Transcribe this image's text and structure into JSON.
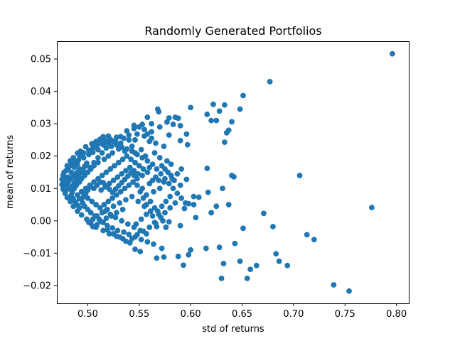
{
  "chart_data": {
    "type": "scatter",
    "title": "Randomly Generated Portfolios",
    "xlabel": "std of returns",
    "ylabel": "mean of returns",
    "xlim": [
      0.47,
      0.812
    ],
    "ylim": [
      -0.0255,
      0.0555
    ],
    "x_ticks": [
      0.5,
      0.55,
      0.6,
      0.65,
      0.7,
      0.75,
      0.8
    ],
    "x_tick_labels": [
      "0.50",
      "0.55",
      "0.60",
      "0.65",
      "0.70",
      "0.75",
      "0.80"
    ],
    "y_ticks": [
      -0.02,
      -0.01,
      0.0,
      0.01,
      0.02,
      0.03,
      0.04,
      0.05
    ],
    "y_tick_labels": [
      "−0.02",
      "−0.01",
      "0.00",
      "0.01",
      "0.02",
      "0.03",
      "0.04",
      "0.05"
    ],
    "marker_color": "#1f77b4",
    "grid": false,
    "points": [
      [
        0.796,
        0.0516
      ],
      [
        0.677,
        0.043
      ],
      [
        0.651,
        0.0387
      ],
      [
        0.622,
        0.036
      ],
      [
        0.633,
        0.0358
      ],
      [
        0.628,
        0.0339
      ],
      [
        0.648,
        0.0345
      ],
      [
        0.6,
        0.035
      ],
      [
        0.585,
        0.032
      ],
      [
        0.62,
        0.031
      ],
      [
        0.625,
        0.031
      ],
      [
        0.64,
        0.0306
      ],
      [
        0.637,
        0.028
      ],
      [
        0.635,
        0.0272
      ],
      [
        0.633,
        0.0243
      ],
      [
        0.616,
        0.0329
      ],
      [
        0.568,
        0.0345
      ],
      [
        0.569,
        0.0337
      ],
      [
        0.558,
        0.032
      ],
      [
        0.579,
        0.0318
      ],
      [
        0.588,
        0.0317
      ],
      [
        0.59,
        0.0294
      ],
      [
        0.596,
        0.0268
      ],
      [
        0.597,
        0.0235
      ],
      [
        0.59,
        0.0248
      ],
      [
        0.579,
        0.0265
      ],
      [
        0.562,
        0.0275
      ],
      [
        0.553,
        0.0298
      ],
      [
        0.545,
        0.0285
      ],
      [
        0.538,
        0.0278
      ],
      [
        0.555,
        0.0262
      ],
      [
        0.546,
        0.025
      ],
      [
        0.532,
        0.026
      ],
      [
        0.528,
        0.0258
      ],
      [
        0.52,
        0.0262
      ],
      [
        0.515,
        0.026
      ],
      [
        0.512,
        0.0252
      ],
      [
        0.508,
        0.0245
      ],
      [
        0.504,
        0.0238
      ],
      [
        0.498,
        0.0229
      ],
      [
        0.493,
        0.0215
      ],
      [
        0.49,
        0.0209
      ],
      [
        0.486,
        0.0195
      ],
      [
        0.483,
        0.0185
      ],
      [
        0.48,
        0.017
      ],
      [
        0.477,
        0.015
      ],
      [
        0.476,
        0.014
      ],
      [
        0.475,
        0.0128
      ],
      [
        0.475,
        0.0112
      ],
      [
        0.476,
        0.0098
      ],
      [
        0.478,
        0.0085
      ],
      [
        0.48,
        0.0072
      ],
      [
        0.483,
        0.006
      ],
      [
        0.486,
        0.0045
      ],
      [
        0.49,
        0.003
      ],
      [
        0.494,
        0.0018
      ],
      [
        0.499,
        0.0005
      ],
      [
        0.503,
        -0.0008
      ],
      [
        0.508,
        -0.002
      ],
      [
        0.515,
        -0.003
      ],
      [
        0.521,
        -0.004
      ],
      [
        0.528,
        -0.0048
      ],
      [
        0.534,
        -0.0055
      ],
      [
        0.541,
        -0.0068
      ],
      [
        0.546,
        -0.0088
      ],
      [
        0.551,
        -0.0095
      ],
      [
        0.567,
        -0.0115
      ],
      [
        0.574,
        -0.0112
      ],
      [
        0.572,
        -0.0085
      ],
      [
        0.588,
        -0.011
      ],
      [
        0.593,
        -0.0137
      ],
      [
        0.598,
        -0.0105
      ],
      [
        0.6,
        -0.009
      ],
      [
        0.615,
        -0.0085
      ],
      [
        0.628,
        -0.0082
      ],
      [
        0.63,
        -0.0178
      ],
      [
        0.632,
        -0.0132
      ],
      [
        0.643,
        -0.007
      ],
      [
        0.648,
        -0.0125
      ],
      [
        0.655,
        -0.0178
      ],
      [
        0.658,
        -0.015
      ],
      [
        0.664,
        -0.0138
      ],
      [
        0.683,
        -0.0102
      ],
      [
        0.686,
        -0.0125
      ],
      [
        0.694,
        -0.0138
      ],
      [
        0.739,
        -0.0198
      ],
      [
        0.754,
        -0.0217
      ],
      [
        0.713,
        -0.0043
      ],
      [
        0.72,
        -0.0058
      ],
      [
        0.68,
        -0.0018
      ],
      [
        0.671,
        0.0023
      ],
      [
        0.651,
        -0.0023
      ],
      [
        0.64,
        0.014
      ],
      [
        0.642,
        0.0136
      ],
      [
        0.616,
        0.0162
      ],
      [
        0.617,
        0.0088
      ],
      [
        0.631,
        0.01
      ],
      [
        0.637,
        0.005
      ],
      [
        0.625,
        0.0045
      ],
      [
        0.62,
        0.0025
      ],
      [
        0.608,
        0.0073
      ],
      [
        0.603,
        0.0075
      ],
      [
        0.598,
        0.0053
      ],
      [
        0.603,
        0.005
      ],
      [
        0.594,
        0.0038
      ],
      [
        0.605,
        0.001
      ],
      [
        0.59,
        -0.0015
      ],
      [
        0.579,
        -0.0003
      ],
      [
        0.576,
        -0.002
      ],
      [
        0.567,
        -0.0018
      ],
      [
        0.565,
        -0.0005
      ],
      [
        0.706,
        0.014
      ],
      [
        0.776,
        0.0041
      ],
      [
        0.596,
        0.0128
      ],
      [
        0.59,
        0.011
      ],
      [
        0.582,
        0.013
      ],
      [
        0.574,
        0.012
      ],
      [
        0.57,
        0.01
      ],
      [
        0.564,
        0.009
      ],
      [
        0.56,
        0.0165
      ],
      [
        0.556,
        0.02
      ],
      [
        0.565,
        0.021
      ],
      [
        0.57,
        0.0195
      ],
      [
        0.577,
        0.0185
      ],
      [
        0.581,
        0.0175
      ],
      [
        0.574,
        0.023
      ],
      [
        0.566,
        0.024
      ],
      [
        0.56,
        0.0245
      ],
      [
        0.552,
        0.022
      ],
      [
        0.546,
        0.021
      ],
      [
        0.543,
        0.023
      ],
      [
        0.536,
        0.0215
      ],
      [
        0.53,
        0.0222
      ],
      [
        0.524,
        0.021
      ],
      [
        0.52,
        0.02
      ],
      [
        0.516,
        0.019
      ],
      [
        0.51,
        0.018
      ],
      [
        0.506,
        0.017
      ],
      [
        0.503,
        0.016
      ],
      [
        0.5,
        0.015
      ],
      [
        0.497,
        0.014
      ],
      [
        0.494,
        0.013
      ],
      [
        0.492,
        0.012
      ],
      [
        0.489,
        0.011
      ],
      [
        0.487,
        0.01
      ],
      [
        0.485,
        0.009
      ],
      [
        0.484,
        0.008
      ],
      [
        0.482,
        0.007
      ],
      [
        0.481,
        0.012
      ],
      [
        0.48,
        0.0105
      ],
      [
        0.481,
        0.0135
      ],
      [
        0.484,
        0.015
      ],
      [
        0.487,
        0.0165
      ],
      [
        0.49,
        0.0175
      ],
      [
        0.492,
        0.016
      ],
      [
        0.496,
        0.0195
      ],
      [
        0.501,
        0.0205
      ],
      [
        0.505,
        0.0212
      ],
      [
        0.51,
        0.022
      ],
      [
        0.515,
        0.0235
      ],
      [
        0.52,
        0.024
      ],
      [
        0.525,
        0.0245
      ],
      [
        0.532,
        0.024
      ],
      [
        0.54,
        0.025
      ],
      [
        0.548,
        0.0268
      ],
      [
        0.555,
        0.0282
      ],
      [
        0.562,
        0.03
      ],
      [
        0.57,
        0.029
      ],
      [
        0.577,
        0.0305
      ],
      [
        0.583,
        0.0298
      ],
      [
        0.49,
        0.008
      ],
      [
        0.492,
        0.0068
      ],
      [
        0.495,
        0.0055
      ],
      [
        0.497,
        0.0045
      ],
      [
        0.5,
        0.0035
      ],
      [
        0.503,
        0.0025
      ],
      [
        0.507,
        0.0015
      ],
      [
        0.511,
        0.0005
      ],
      [
        0.515,
        -0.0005
      ],
      [
        0.519,
        -0.0015
      ],
      [
        0.524,
        -0.0022
      ],
      [
        0.529,
        -0.003
      ],
      [
        0.535,
        -0.0035
      ],
      [
        0.54,
        -0.0042
      ],
      [
        0.546,
        -0.005
      ],
      [
        0.552,
        -0.0058
      ],
      [
        0.558,
        -0.0065
      ],
      [
        0.564,
        -0.0072
      ],
      [
        0.557,
        -0.004
      ],
      [
        0.551,
        -0.003
      ],
      [
        0.545,
        -0.002
      ],
      [
        0.539,
        -0.001
      ],
      [
        0.533,
        0.0
      ],
      [
        0.527,
        0.001
      ],
      [
        0.522,
        0.002
      ],
      [
        0.517,
        0.003
      ],
      [
        0.512,
        0.004
      ],
      [
        0.508,
        0.005
      ],
      [
        0.504,
        0.006
      ],
      [
        0.5,
        0.007
      ],
      [
        0.497,
        0.008
      ],
      [
        0.494,
        0.009
      ],
      [
        0.498,
        0.01
      ],
      [
        0.502,
        0.011
      ],
      [
        0.506,
        0.012
      ],
      [
        0.51,
        0.013
      ],
      [
        0.514,
        0.014
      ],
      [
        0.518,
        0.015
      ],
      [
        0.522,
        0.016
      ],
      [
        0.526,
        0.017
      ],
      [
        0.53,
        0.018
      ],
      [
        0.534,
        0.019
      ],
      [
        0.538,
        0.02
      ],
      [
        0.542,
        0.019
      ],
      [
        0.546,
        0.018
      ],
      [
        0.55,
        0.017
      ],
      [
        0.554,
        0.016
      ],
      [
        0.558,
        0.015
      ],
      [
        0.553,
        0.014
      ],
      [
        0.548,
        0.013
      ],
      [
        0.544,
        0.012
      ],
      [
        0.54,
        0.011
      ],
      [
        0.536,
        0.01
      ],
      [
        0.532,
        0.009
      ],
      [
        0.528,
        0.008
      ],
      [
        0.524,
        0.007
      ],
      [
        0.52,
        0.006
      ],
      [
        0.516,
        0.005
      ],
      [
        0.513,
        0.0095
      ],
      [
        0.517,
        0.0105
      ],
      [
        0.521,
        0.0115
      ],
      [
        0.525,
        0.0125
      ],
      [
        0.529,
        0.0135
      ],
      [
        0.533,
        0.0145
      ],
      [
        0.537,
        0.0155
      ],
      [
        0.541,
        0.0165
      ],
      [
        0.545,
        0.0155
      ],
      [
        0.549,
        0.0145
      ],
      [
        0.553,
        0.01
      ],
      [
        0.557,
        0.008
      ],
      [
        0.561,
        0.006
      ],
      [
        0.565,
        0.004
      ],
      [
        0.569,
        0.002
      ],
      [
        0.573,
        0.0
      ],
      [
        0.561,
        0.003
      ],
      [
        0.555,
        0.0045
      ],
      [
        0.549,
        0.006
      ],
      [
        0.543,
        0.0075
      ],
      [
        0.537,
        0.0065
      ],
      [
        0.531,
        0.0055
      ],
      [
        0.525,
        0.0045
      ],
      [
        0.519,
        0.0035
      ],
      [
        0.514,
        0.0025
      ],
      [
        0.509,
        0.0015
      ],
      [
        0.505,
        0.0005
      ],
      [
        0.501,
        -0.0005
      ],
      [
        0.498,
        0.015
      ],
      [
        0.502,
        0.0165
      ],
      [
        0.506,
        0.018
      ],
      [
        0.51,
        0.0195
      ],
      [
        0.514,
        0.021
      ],
      [
        0.518,
        0.0225
      ],
      [
        0.523,
        0.023
      ],
      [
        0.528,
        0.0235
      ],
      [
        0.533,
        0.0228
      ],
      [
        0.538,
        0.0222
      ],
      [
        0.543,
        0.0215
      ],
      [
        0.548,
        0.0205
      ],
      [
        0.553,
        0.0195
      ],
      [
        0.558,
        0.0185
      ],
      [
        0.563,
        0.0175
      ],
      [
        0.567,
        0.016
      ],
      [
        0.571,
        0.0145
      ],
      [
        0.575,
        0.013
      ],
      [
        0.579,
        0.0115
      ],
      [
        0.583,
        0.01
      ],
      [
        0.587,
        0.0085
      ],
      [
        0.591,
        0.007
      ],
      [
        0.595,
        0.0055
      ],
      [
        0.587,
        0.0145
      ],
      [
        0.591,
        0.016
      ],
      [
        0.585,
        0.0055
      ],
      [
        0.58,
        0.004
      ],
      [
        0.575,
        0.0025
      ],
      [
        0.571,
        0.001
      ],
      [
        0.566,
        -0.0008
      ],
      [
        0.56,
        -0.002
      ],
      [
        0.554,
        -0.0032
      ],
      [
        0.548,
        -0.0043
      ],
      [
        0.543,
        -0.0055
      ],
      [
        0.537,
        -0.0063
      ],
      [
        0.531,
        -0.005
      ],
      [
        0.525,
        -0.004
      ],
      [
        0.519,
        -0.0028
      ],
      [
        0.478,
        0.0125
      ],
      [
        0.477,
        0.0138
      ],
      [
        0.479,
        0.0155
      ],
      [
        0.481,
        0.0162
      ],
      [
        0.483,
        0.017
      ],
      [
        0.486,
        0.0178
      ],
      [
        0.488,
        0.0182
      ],
      [
        0.491,
        0.0188
      ],
      [
        0.479,
        0.0095
      ],
      [
        0.478,
        0.0108
      ],
      [
        0.48,
        0.0115
      ],
      [
        0.482,
        0.0125
      ],
      [
        0.484,
        0.0132
      ],
      [
        0.486,
        0.014
      ],
      [
        0.488,
        0.0145
      ],
      [
        0.49,
        0.015
      ],
      [
        0.483,
        0.0098
      ],
      [
        0.485,
        0.0108
      ],
      [
        0.487,
        0.0118
      ],
      [
        0.489,
        0.0128
      ],
      [
        0.491,
        0.0138
      ],
      [
        0.493,
        0.0148
      ],
      [
        0.495,
        0.0158
      ],
      [
        0.497,
        0.0168
      ],
      [
        0.499,
        0.0178
      ],
      [
        0.486,
        0.0068
      ],
      [
        0.488,
        0.0058
      ],
      [
        0.49,
        0.0048
      ],
      [
        0.492,
        0.004
      ],
      [
        0.494,
        0.0068
      ],
      [
        0.496,
        0.0075
      ],
      [
        0.498,
        0.0085
      ],
      [
        0.5,
        0.0095
      ],
      [
        0.503,
        0.0105
      ],
      [
        0.506,
        0.01
      ],
      [
        0.509,
        0.011
      ],
      [
        0.512,
        0.012
      ],
      [
        0.515,
        0.0118
      ],
      [
        0.518,
        0.0108
      ],
      [
        0.521,
        0.0098
      ],
      [
        0.524,
        0.0088
      ],
      [
        0.527,
        0.0098
      ],
      [
        0.53,
        0.0108
      ],
      [
        0.533,
        0.0118
      ],
      [
        0.536,
        0.0128
      ],
      [
        0.539,
        0.0138
      ],
      [
        0.542,
        0.0148
      ],
      [
        0.545,
        0.014
      ],
      [
        0.548,
        0.011
      ],
      [
        0.551,
        0.009
      ],
      [
        0.554,
        0.007
      ],
      [
        0.557,
        0.005
      ],
      [
        0.56,
        0.0115
      ],
      [
        0.563,
        0.0125
      ],
      [
        0.566,
        0.0135
      ],
      [
        0.569,
        0.0125
      ],
      [
        0.572,
        0.017
      ],
      [
        0.575,
        0.016
      ],
      [
        0.578,
        0.015
      ],
      [
        0.581,
        0.014
      ],
      [
        0.584,
        0.0125
      ],
      [
        0.562,
        0.0255
      ],
      [
        0.558,
        0.0268
      ],
      [
        0.55,
        0.029
      ],
      [
        0.545,
        0.0295
      ],
      [
        0.54,
        0.0265
      ],
      [
        0.535,
        0.0255
      ],
      [
        0.527,
        0.0248
      ],
      [
        0.522,
        0.0252
      ],
      [
        0.517,
        0.0248
      ],
      [
        0.513,
        0.024
      ],
      [
        0.509,
        0.0232
      ],
      [
        0.505,
        0.0225
      ],
      [
        0.501,
        0.0218
      ],
      [
        0.496,
        0.021
      ],
      [
        0.492,
        0.0202
      ],
      [
        0.534,
        0.0035
      ],
      [
        0.528,
        0.0025
      ],
      [
        0.523,
        0.0015
      ],
      [
        0.518,
        0.0008
      ],
      [
        0.513,
        -0.0002
      ],
      [
        0.509,
        -0.0012
      ],
      [
        0.505,
        -0.0018
      ],
      [
        0.547,
        -0.001
      ],
      [
        0.552,
        0.0005
      ],
      [
        0.557,
        0.002
      ],
      [
        0.563,
        0.0015
      ],
      [
        0.568,
        0.003
      ],
      [
        0.572,
        0.0045
      ],
      [
        0.576,
        0.006
      ],
      [
        0.58,
        0.0075
      ]
    ]
  }
}
